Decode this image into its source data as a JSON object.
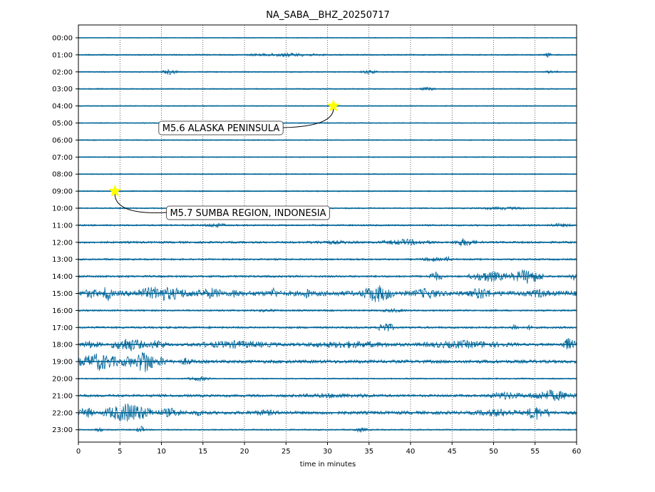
{
  "chart_data": {
    "type": "line",
    "title": "NA_SABA__BHZ_20250717",
    "xlabel": "time in minutes",
    "ylabel": "",
    "xlim": [
      0,
      60
    ],
    "xticks": [
      "0",
      "5",
      "10",
      "15",
      "20",
      "25",
      "30",
      "35",
      "40",
      "45",
      "50",
      "55",
      "60"
    ],
    "rows": [
      "00:00",
      "01:00",
      "02:00",
      "03:00",
      "04:00",
      "05:00",
      "06:00",
      "07:00",
      "08:00",
      "09:00",
      "10:00",
      "11:00",
      "12:00",
      "13:00",
      "14:00",
      "15:00",
      "16:00",
      "17:00",
      "18:00",
      "19:00",
      "20:00",
      "21:00",
      "22:00",
      "23:00"
    ],
    "grid": "vertical dotted",
    "trace_color": "#006699",
    "events": [
      {
        "label": "M5.6 ALASKA PENINSULA",
        "row": 4,
        "minute": 30.7,
        "color": "#ffff00"
      },
      {
        "label": "M5.7 SUMBA REGION, INDONESIA",
        "row": 9,
        "minute": 4.4,
        "color": "#ffff00"
      }
    ],
    "activity": [
      {
        "row": 0,
        "level": 0.05,
        "bursts": []
      },
      {
        "row": 1,
        "level": 0.08,
        "bursts": [
          [
            20,
            30,
            0.25
          ],
          [
            56,
            57,
            0.3
          ]
        ]
      },
      {
        "row": 2,
        "level": 0.07,
        "bursts": [
          [
            10,
            12,
            0.35
          ],
          [
            34,
            36,
            0.3
          ],
          [
            56,
            58,
            0.2
          ]
        ]
      },
      {
        "row": 3,
        "level": 0.07,
        "bursts": [
          [
            41,
            43,
            0.25
          ]
        ]
      },
      {
        "row": 4,
        "level": 0.06,
        "bursts": []
      },
      {
        "row": 5,
        "level": 0.06,
        "bursts": []
      },
      {
        "row": 6,
        "level": 0.06,
        "bursts": []
      },
      {
        "row": 7,
        "level": 0.06,
        "bursts": []
      },
      {
        "row": 8,
        "level": 0.06,
        "bursts": []
      },
      {
        "row": 9,
        "level": 0.07,
        "bursts": []
      },
      {
        "row": 10,
        "level": 0.08,
        "bursts": [
          [
            47,
            55,
            0.2
          ]
        ]
      },
      {
        "row": 11,
        "level": 0.1,
        "bursts": [
          [
            15,
            18,
            0.3
          ],
          [
            56,
            60,
            0.25
          ]
        ]
      },
      {
        "row": 12,
        "level": 0.12,
        "bursts": [
          [
            26,
            35,
            0.25
          ],
          [
            36,
            43,
            0.4
          ],
          [
            45,
            48,
            0.5
          ]
        ]
      },
      {
        "row": 13,
        "level": 0.1,
        "bursts": [
          [
            41,
            44,
            0.3
          ],
          [
            44,
            45,
            0.4
          ]
        ]
      },
      {
        "row": 14,
        "level": 0.12,
        "bursts": [
          [
            42,
            44,
            0.6
          ],
          [
            47,
            52,
            0.7
          ],
          [
            52,
            56,
            0.9
          ],
          [
            59,
            60,
            0.6
          ]
        ]
      },
      {
        "row": 15,
        "level": 0.3,
        "bursts": [
          [
            0,
            3,
            0.6
          ],
          [
            3,
            4,
            1.2
          ],
          [
            6,
            14,
            0.9
          ],
          [
            14,
            18,
            0.7
          ],
          [
            18,
            20,
            0.6
          ],
          [
            23,
            24,
            0.8
          ],
          [
            27,
            28,
            0.7
          ],
          [
            34,
            38,
            1.1
          ],
          [
            40,
            44,
            0.7
          ],
          [
            47,
            50,
            0.8
          ],
          [
            54,
            57,
            0.6
          ]
        ]
      },
      {
        "row": 16,
        "level": 0.1,
        "bursts": [
          [
            20,
            25,
            0.2
          ],
          [
            36,
            40,
            0.25
          ]
        ]
      },
      {
        "row": 17,
        "level": 0.12,
        "bursts": [
          [
            36,
            38,
            0.7
          ],
          [
            52,
            53,
            0.5
          ],
          [
            54,
            55,
            0.4
          ]
        ]
      },
      {
        "row": 18,
        "level": 0.15,
        "bursts": [
          [
            0,
            3,
            0.5
          ],
          [
            4,
            8,
            0.9
          ],
          [
            8,
            11,
            0.6
          ],
          [
            13,
            25,
            0.5
          ],
          [
            25,
            40,
            0.45
          ],
          [
            40,
            53,
            0.5
          ],
          [
            58,
            60,
            0.8
          ]
        ]
      },
      {
        "row": 19,
        "level": 0.2,
        "bursts": [
          [
            0,
            5,
            1.1
          ],
          [
            5,
            7,
            0.8
          ],
          [
            7,
            9,
            1.7
          ],
          [
            9,
            11,
            0.6
          ],
          [
            12,
            14,
            0.5
          ]
        ]
      },
      {
        "row": 20,
        "level": 0.08,
        "bursts": [
          [
            13,
            16,
            0.3
          ]
        ]
      },
      {
        "row": 21,
        "level": 0.15,
        "bursts": [
          [
            23,
            39,
            0.3
          ],
          [
            49,
            54,
            0.5
          ],
          [
            54,
            60,
            0.7
          ]
        ]
      },
      {
        "row": 22,
        "level": 0.2,
        "bursts": [
          [
            0,
            2,
            0.7
          ],
          [
            3,
            9,
            1.2
          ],
          [
            9,
            13,
            0.6
          ],
          [
            13,
            16,
            0.4
          ],
          [
            20,
            25,
            0.4
          ],
          [
            47,
            54,
            0.5
          ],
          [
            54,
            56,
            1.0
          ],
          [
            56,
            57,
            0.6
          ]
        ]
      },
      {
        "row": 23,
        "level": 0.08,
        "bursts": [
          [
            2,
            3,
            0.3
          ],
          [
            7,
            8,
            0.5
          ],
          [
            33,
            35,
            0.3
          ]
        ]
      }
    ]
  }
}
